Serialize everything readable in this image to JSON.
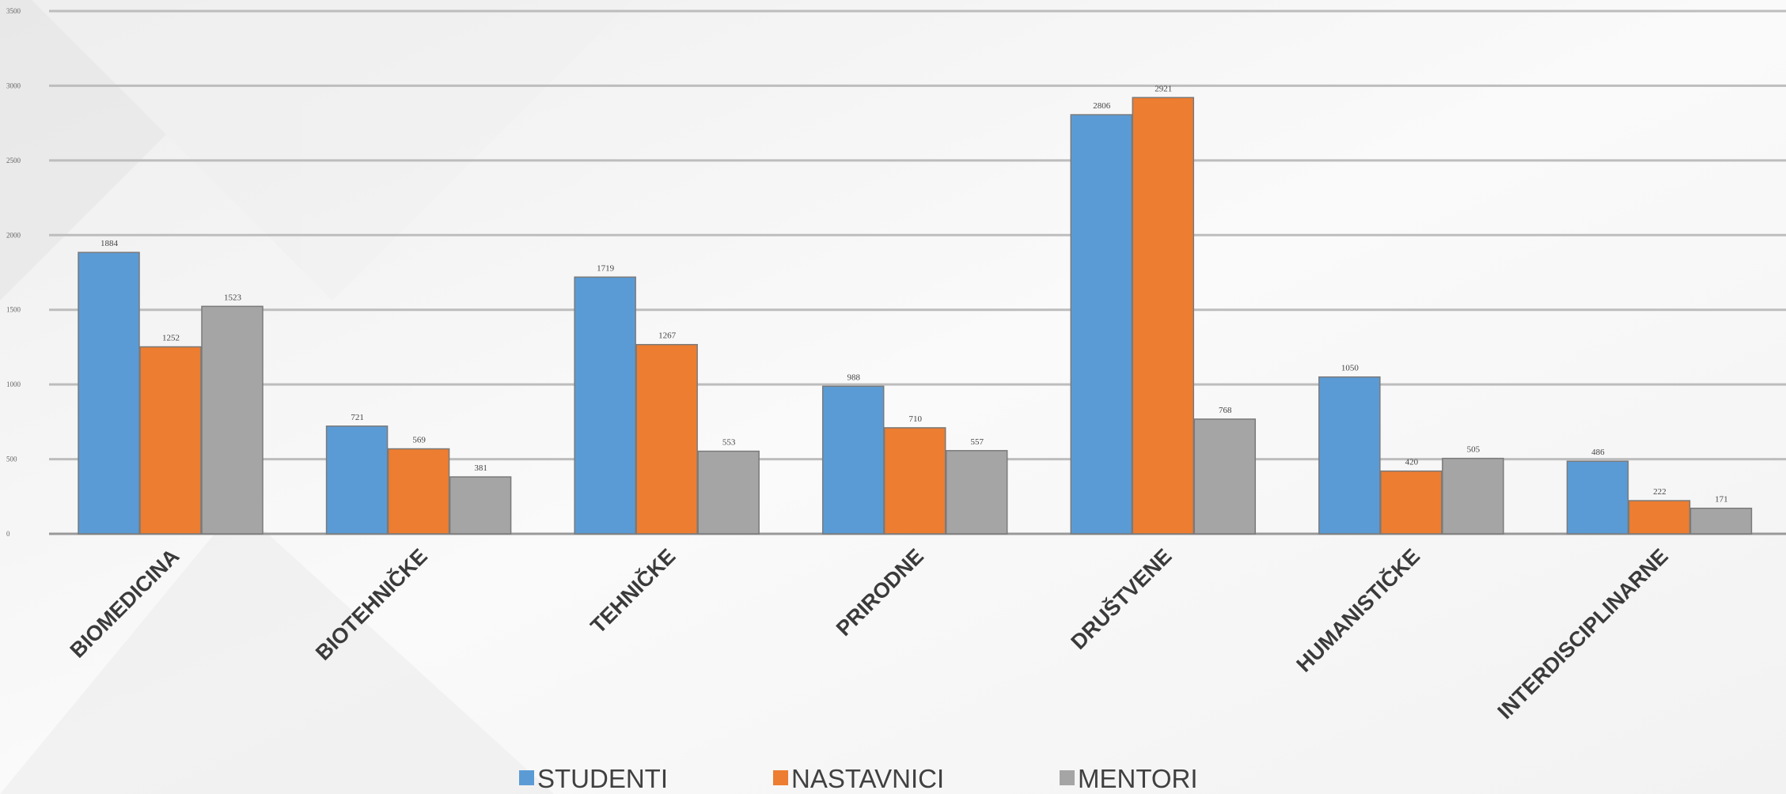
{
  "chart_data": {
    "type": "bar",
    "categories": [
      "BIOMEDICINA",
      "BIOTEHNIČKE",
      "TEHNIČKE",
      "PRIRODNE",
      "DRUŠTVENE",
      "HUMANISTIČKE",
      "INTERDISCIPLINARNE"
    ],
    "series": [
      {
        "name": "STUDENTI",
        "color": "#5b9bd5",
        "values": [
          1884,
          721,
          1719,
          988,
          2806,
          1050,
          486
        ]
      },
      {
        "name": "NASTAVNICI",
        "color": "#ed7d31",
        "values": [
          1252,
          569,
          1267,
          710,
          2921,
          420,
          222
        ]
      },
      {
        "name": "MENTORI",
        "color": "#a5a5a5",
        "values": [
          1523,
          381,
          553,
          557,
          768,
          505,
          171
        ]
      }
    ],
    "yticks": [
      "0",
      "500",
      "1000",
      "1500",
      "2000",
      "2500",
      "3000",
      "3500"
    ],
    "ylim": [
      0,
      3500
    ],
    "grid": true,
    "legend_position": "bottom"
  }
}
